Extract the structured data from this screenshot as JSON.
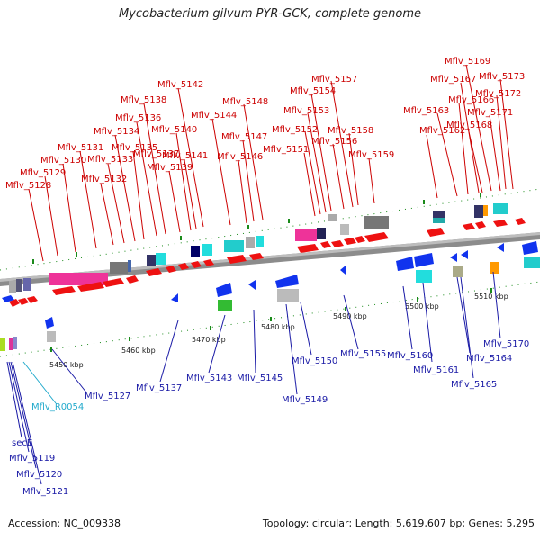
{
  "title": "Mycobacterium gilvum PYR-GCK, complete genome",
  "footer": {
    "accession": "Accession: NC_009338",
    "summary": "Topology: circular; Length: 5,619,607 bp; Genes: 5,295"
  },
  "colors": {
    "forward_gene": "#ee1111",
    "reverse_gene": "#1133ee",
    "forward_label": "#cc0000",
    "reverse_label": "#1a1aa6",
    "rna_label": "#22aacc",
    "backbone": "#8c8c8c",
    "tick": "#1a8a1a"
  },
  "scale": {
    "labels": [
      "5450 kbp",
      "5460 kbp",
      "5470 kbp",
      "5480 kbp",
      "5490 kbp",
      "5500 kbp",
      "5510 kbp"
    ]
  },
  "forward_genes": [
    "Mflv_5128",
    "Mflv_5129",
    "Mflv_5130",
    "Mflv_5131",
    "Mflv_5132",
    "Mflv_5133",
    "Mflv_5134",
    "Mflv_5135",
    "Mflv_5136",
    "Mflv_5137",
    "Mflv_5138",
    "Mflv_5139",
    "Mflv_5140",
    "Mflv_5141",
    "Mflv_5142",
    "Mflv_5144",
    "Mflv_5146",
    "Mflv_5147",
    "Mflv_5148",
    "Mflv_5151",
    "Mflv_5152",
    "Mflv_5153",
    "Mflv_5154",
    "Mflv_5156",
    "Mflv_5157",
    "Mflv_5158",
    "Mflv_5159",
    "Mflv_5162",
    "Mflv_5163",
    "Mflv_5166",
    "Mflv_5167",
    "Mflv_5168",
    "Mflv_5169",
    "Mflv_5171",
    "Mflv_5172",
    "Mflv_5173"
  ],
  "reverse_genes": [
    "secE",
    "Mflv_5119",
    "Mflv_5120",
    "Mflv_5121",
    "Mflv_5127",
    "Mflv_5137",
    "Mflv_5143",
    "Mflv_5145",
    "Mflv_5149",
    "Mflv_5150",
    "Mflv_5155",
    "Mflv_5160",
    "Mflv_5161",
    "Mflv_5164",
    "Mflv_5165",
    "Mflv_5170"
  ],
  "rna_genes": [
    "Mflv_R0054"
  ]
}
